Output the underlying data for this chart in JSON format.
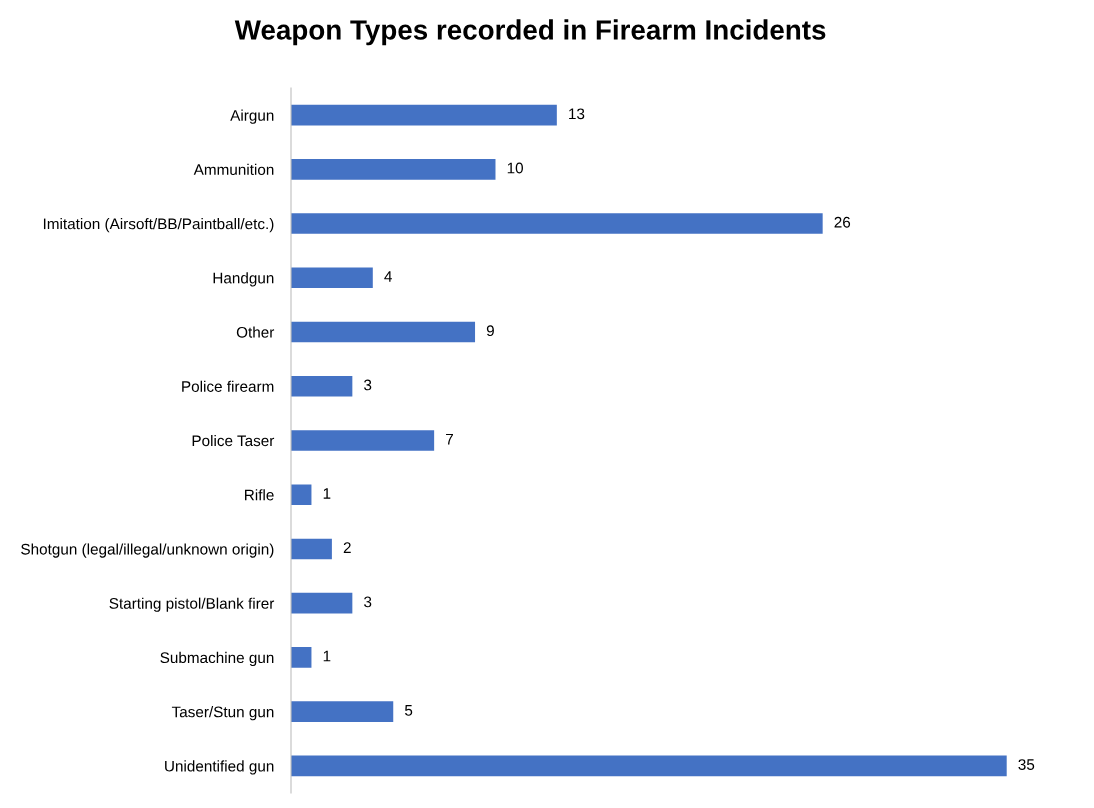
{
  "chart_data": {
    "type": "bar",
    "orientation": "horizontal",
    "title": "Weapon Types recorded in Firearm Incidents",
    "categories": [
      "Airgun",
      "Ammunition",
      "Imitation (Airsoft/BB/Paintball/etc.)",
      "Handgun",
      "Other",
      "Police firearm",
      "Police Taser",
      "Rifle",
      "Shotgun (legal/illegal/unknown origin)",
      "Starting pistol/Blank firer",
      "Submachine gun",
      "Taser/Stun gun",
      "Unidentified gun"
    ],
    "values": [
      13,
      10,
      26,
      4,
      9,
      3,
      7,
      1,
      2,
      3,
      1,
      5,
      35
    ],
    "color": "#4472c4",
    "data_labels": true,
    "grid": false,
    "legend": false,
    "tick_labels": "y"
  }
}
